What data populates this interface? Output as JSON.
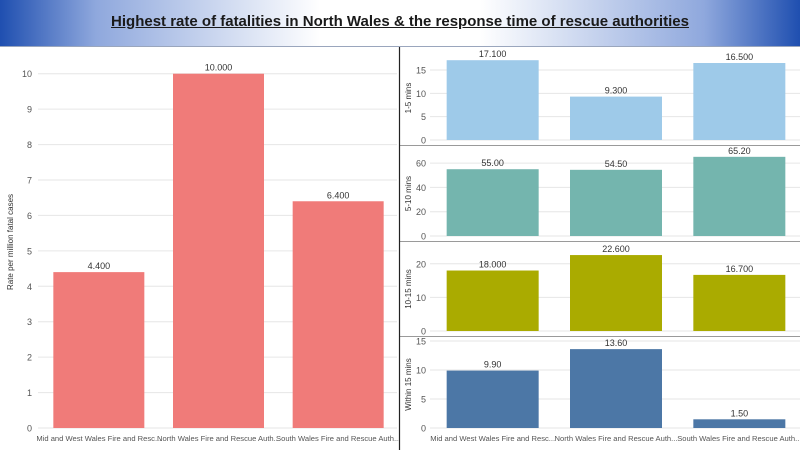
{
  "title": "Highest rate of fatalities in North Wales & the response time of rescue authorities",
  "colors": {
    "left_bars": "#f07b79",
    "series_1_5": "#9ecae9",
    "series_5_10": "#74b5ae",
    "series_10_15": "#aaab00",
    "series_within_15": "#4c77a6",
    "grid": "#e6e6e6",
    "axis_text": "#555555",
    "divider": "#222222"
  },
  "chart_data": [
    {
      "type": "bar",
      "categories": [
        "Mid and West Wales Fire and Resc...",
        "North Wales Fire and Rescue Auth...",
        "South Wales Fire and Rescue Auth..."
      ],
      "values": [
        4.4,
        10.0,
        6.4
      ],
      "value_labels": [
        "4.400",
        "10.000",
        "6.400"
      ],
      "ylabel": "Rate per million fatal cases",
      "ylim": [
        0,
        10.5
      ],
      "yticks": [
        0,
        1,
        2,
        3,
        4,
        5,
        6,
        7,
        8,
        9,
        10
      ],
      "grid": true
    },
    {
      "type": "bar",
      "categories": [
        "Mid and West Wales Fire and Resc...",
        "North Wales Fire and Rescue Auth...",
        "South Wales Fire and Rescue Auth..."
      ],
      "series": [
        {
          "name": "1-5 mins",
          "values": [
            17.1,
            9.3,
            16.5
          ],
          "value_labels": [
            "17.100",
            "9.300",
            "16.500"
          ],
          "ylim": [
            0,
            18
          ],
          "yticks": [
            0,
            5,
            10,
            15
          ]
        },
        {
          "name": "5-10 mins",
          "values": [
            55.0,
            54.5,
            65.2
          ],
          "value_labels": [
            "55.00",
            "54.50",
            "65.20"
          ],
          "ylim": [
            0,
            70
          ],
          "yticks": [
            0,
            20,
            40,
            60
          ]
        },
        {
          "name": "10-15 mins",
          "values": [
            18.0,
            22.6,
            16.7
          ],
          "value_labels": [
            "18.000",
            "22.600",
            "16.700"
          ],
          "ylim": [
            0,
            25
          ],
          "yticks": [
            0,
            10,
            20
          ]
        },
        {
          "name": "Within 15 mins",
          "values": [
            9.9,
            13.6,
            1.5
          ],
          "value_labels": [
            "9.90",
            "13.60",
            "1.50"
          ],
          "ylim": [
            0,
            15
          ],
          "yticks": [
            0,
            5,
            10,
            15
          ]
        }
      ],
      "grid": true
    }
  ]
}
